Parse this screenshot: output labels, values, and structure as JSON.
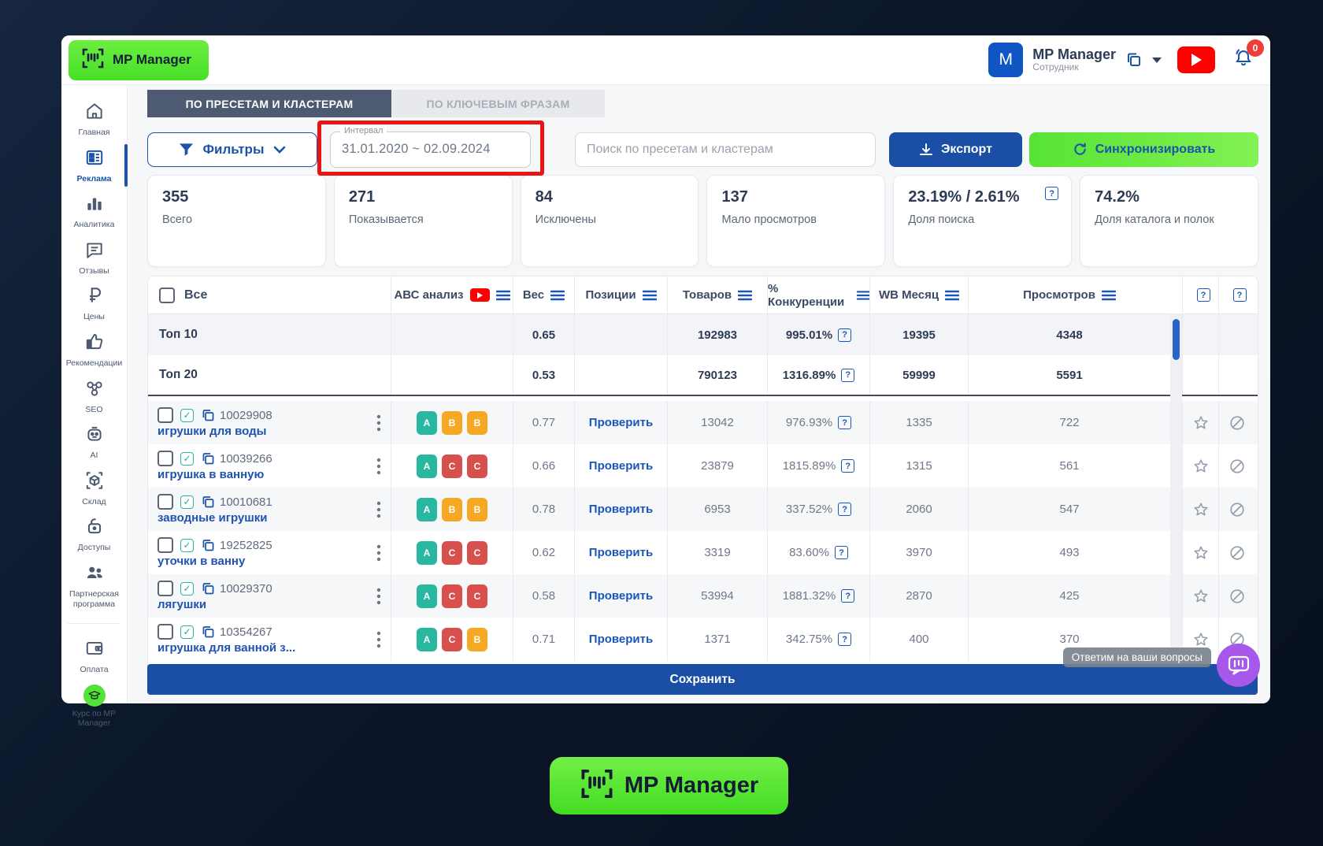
{
  "header": {
    "logo_text": "MP Manager",
    "user": {
      "initial": "M",
      "name": "MP Manager",
      "role": "Сотрудник"
    },
    "notification_count": "0"
  },
  "sidebar": {
    "items": [
      {
        "label": "Главная",
        "icon": "home-icon",
        "active": false
      },
      {
        "label": "Реклама",
        "icon": "ads-icon",
        "active": true
      },
      {
        "label": "Аналитика",
        "icon": "analytics-icon",
        "active": false
      },
      {
        "label": "Отзывы",
        "icon": "reviews-icon",
        "active": false
      },
      {
        "label": "Цены",
        "icon": "ruble-icon",
        "active": false
      },
      {
        "label": "Рекомендации",
        "icon": "thumb-up-icon",
        "active": false
      },
      {
        "label": "SEO",
        "icon": "seo-icon",
        "active": false
      },
      {
        "label": "AI",
        "icon": "robot-icon",
        "active": false
      },
      {
        "label": "Склад",
        "icon": "warehouse-icon",
        "active": false
      },
      {
        "label": "Доступы",
        "icon": "lock-icon",
        "active": false
      },
      {
        "label": "Партнерская программа",
        "icon": "partners-icon",
        "active": false
      }
    ],
    "footer_items": [
      {
        "label": "Оплата",
        "icon": "wallet-icon",
        "active": false
      },
      {
        "label": "Курс по MP Manager",
        "icon": "graduation-icon",
        "active": false
      }
    ]
  },
  "tabs": [
    {
      "label": "ПО ПРЕСЕТАМ И КЛАСТЕРАМ",
      "active": true
    },
    {
      "label": "ПО КЛЮЧЕВЫМ ФРАЗАМ",
      "active": false
    }
  ],
  "toolbar": {
    "filters_label": "Фильтры",
    "interval_label": "Интервал",
    "interval_value": "31.01.2020 ~ 02.09.2024",
    "search_placeholder": "Поиск по пресетам и кластерам",
    "export_label": "Экспорт",
    "sync_label": "Синхронизировать"
  },
  "stats": [
    {
      "value": "355",
      "label": "Всего",
      "help": false
    },
    {
      "value": "271",
      "label": "Показывается",
      "help": false
    },
    {
      "value": "84",
      "label": "Исключены",
      "help": false
    },
    {
      "value": "137",
      "label": "Мало просмотров",
      "help": false
    },
    {
      "value": "23.19% / 2.61%",
      "label": "Доля поиска",
      "help": true
    },
    {
      "value": "74.2%",
      "label": "Доля каталога и полок",
      "help": false
    }
  ],
  "table": {
    "select_all_label": "Все",
    "columns": [
      "АВС анализ",
      "Вес",
      "Позиции",
      "Товаров",
      "% Конкуренции",
      "WB Месяц",
      "Просмотров"
    ],
    "summary_rows": [
      {
        "name": "Топ 10",
        "weight": "0.65",
        "products": "192983",
        "competition": "995.01%",
        "wb_month": "19395",
        "views": "4348"
      },
      {
        "name": "Топ 20",
        "weight": "0.53",
        "products": "790123",
        "competition": "1316.89%",
        "wb_month": "59999",
        "views": "5591"
      }
    ],
    "rows": [
      {
        "id": "10029908",
        "name": "игрушки для воды",
        "abc": [
          "A",
          "B",
          "B"
        ],
        "weight": "0.77",
        "position_label": "Проверить",
        "products": "13042",
        "competition": "976.93%",
        "wb_month": "1335",
        "views": "722"
      },
      {
        "id": "10039266",
        "name": "игрушка в ванную",
        "abc": [
          "A",
          "C",
          "C"
        ],
        "weight": "0.66",
        "position_label": "Проверить",
        "products": "23879",
        "competition": "1815.89%",
        "wb_month": "1315",
        "views": "561"
      },
      {
        "id": "10010681",
        "name": "заводные игрушки",
        "abc": [
          "A",
          "B",
          "B"
        ],
        "weight": "0.78",
        "position_label": "Проверить",
        "products": "6953",
        "competition": "337.52%",
        "wb_month": "2060",
        "views": "547"
      },
      {
        "id": "19252825",
        "name": "уточки в ванну",
        "abc": [
          "A",
          "C",
          "C"
        ],
        "weight": "0.62",
        "position_label": "Проверить",
        "products": "3319",
        "competition": "83.60%",
        "wb_month": "3970",
        "views": "493"
      },
      {
        "id": "10029370",
        "name": "лягушки",
        "abc": [
          "A",
          "C",
          "C"
        ],
        "weight": "0.58",
        "position_label": "Проверить",
        "products": "53994",
        "competition": "1881.32%",
        "wb_month": "2870",
        "views": "425"
      },
      {
        "id": "10354267",
        "name": "игрушка для ванной з...",
        "abc": [
          "A",
          "C",
          "B"
        ],
        "weight": "0.71",
        "position_label": "Проверить",
        "products": "1371",
        "competition": "342.75%",
        "wb_month": "400",
        "views": "370"
      }
    ]
  },
  "footer": {
    "save_label": "Сохранить"
  },
  "chat": {
    "tooltip": "Ответим на ваши вопросы"
  },
  "bottom_logo_text": "MP Manager",
  "colors": {
    "primary_blue": "#1a53a8",
    "brand_green": "#4fe02e",
    "badge_a_teal": "#29b7a0",
    "badge_b_amber": "#f5a823",
    "badge_c_red": "#d8504d",
    "chat_purple": "#a558ea",
    "notification_red": "#ef3e3a",
    "annotation_red": "#e81414"
  }
}
